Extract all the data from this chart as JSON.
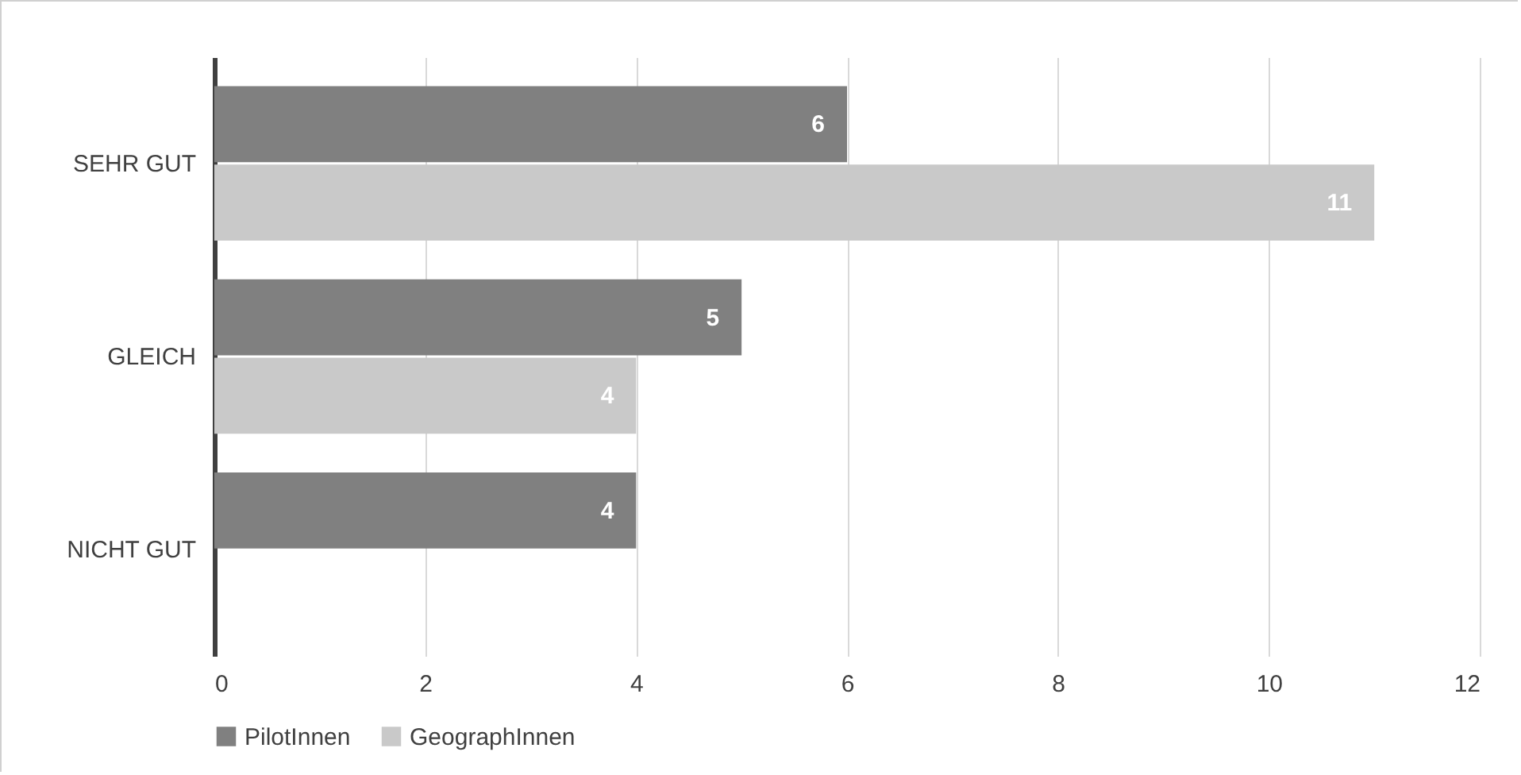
{
  "chart_data": {
    "type": "bar",
    "orientation": "horizontal",
    "categories": [
      "SEHR GUT",
      "GLEICH",
      "NICHT GUT"
    ],
    "series": [
      {
        "name": "PilotInnen",
        "color": "#808080",
        "values": [
          6,
          5,
          4
        ]
      },
      {
        "name": "GeographInnen",
        "color": "#c9c9c9",
        "values": [
          11,
          4,
          null
        ]
      }
    ],
    "xlim": [
      0,
      12
    ],
    "xticks": [
      0,
      2,
      4,
      6,
      8,
      10,
      12
    ],
    "grid": "x",
    "legend": "bottom",
    "data_labels": true
  }
}
